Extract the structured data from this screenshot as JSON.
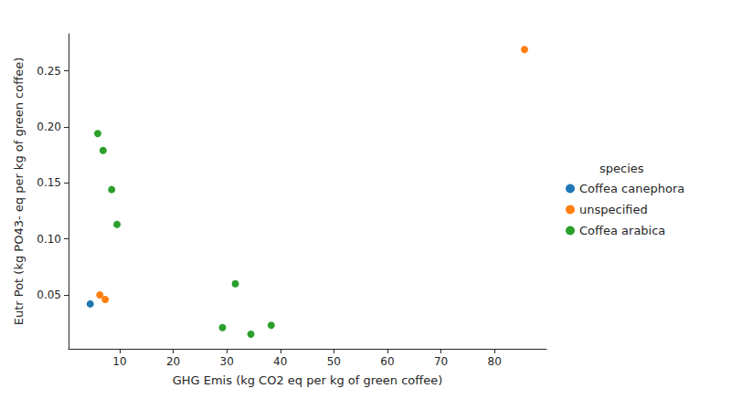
{
  "chart_data": {
    "type": "scatter",
    "x_label": "GHG Emis (kg CO2 eq per kg of green coffee)",
    "y_label": "Eutr Pot (kg PO43- eq per kg of green coffee)",
    "legend_title": "species",
    "legend": "right",
    "grid": false,
    "marker": "circle",
    "xlim": [
      0.45,
      89.7
    ],
    "xticks": [
      10,
      20,
      30,
      40,
      50,
      60,
      70,
      80
    ],
    "ylim": [
      0.002,
      0.283
    ],
    "yticks": [
      0.05,
      {
        "value": 0.1,
        "label": "0.10"
      },
      0.15,
      {
        "value": 0.2,
        "label": "0.20"
      },
      0.25
    ],
    "series": [
      {
        "name": "Coffea canephora",
        "color": "#1f77b4",
        "x": [
          4.5
        ],
        "values": [
          0.042
        ]
      },
      {
        "name": "unspecified",
        "color": "#ff7f0e",
        "x": [
          6.3,
          7.3,
          85.6
        ],
        "values": [
          0.05,
          0.046,
          0.269
        ]
      },
      {
        "name": "Coffea arabica",
        "color": "#2ca02c",
        "x": [
          5.9,
          6.9,
          8.5,
          9.5,
          31.6,
          29.2,
          34.5,
          38.3
        ],
        "values": [
          0.194,
          0.179,
          0.144,
          0.113,
          0.06,
          0.021,
          0.015,
          0.023
        ]
      }
    ]
  }
}
